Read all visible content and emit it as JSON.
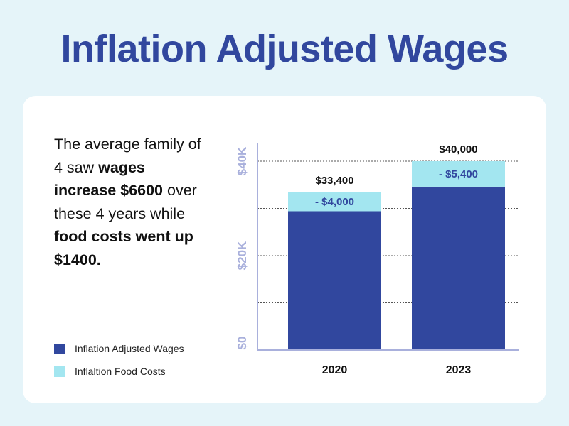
{
  "title": "Inflation Adjusted Wages",
  "description": {
    "t1": "The average family of 4 saw ",
    "b1": "wages increase $6600",
    "t2": " over these 4 years while ",
    "b2": "food costs went up $1400."
  },
  "legend": [
    {
      "label": "Inflation Adjusted Wages",
      "color": "#31479e"
    },
    {
      "label": "Inflaltion Food Costs",
      "color": "#a3e6f0"
    }
  ],
  "chart_data": {
    "type": "bar",
    "stacked": true,
    "categories": [
      "2020",
      "2023"
    ],
    "series": [
      {
        "name": "Inflation Adjusted Wages",
        "values": [
          29400,
          34600
        ],
        "color": "#31479e"
      },
      {
        "name": "Inflaltion Food Costs",
        "values": [
          4000,
          5400
        ],
        "color": "#a3e6f0"
      }
    ],
    "segment_labels": [
      "- $4,000",
      "- $5,400"
    ],
    "total_labels": [
      "$33,400",
      "$40,000"
    ],
    "ylim": [
      0,
      40000
    ],
    "yticks": [
      {
        "value": 0,
        "label": "$0"
      },
      {
        "value": 20000,
        "label": "$20K"
      },
      {
        "value": 40000,
        "label": "$40K"
      }
    ],
    "gridlines": [
      10000,
      20000,
      30000,
      40000
    ],
    "grid": true,
    "axis_color": "#a9b0dc"
  }
}
